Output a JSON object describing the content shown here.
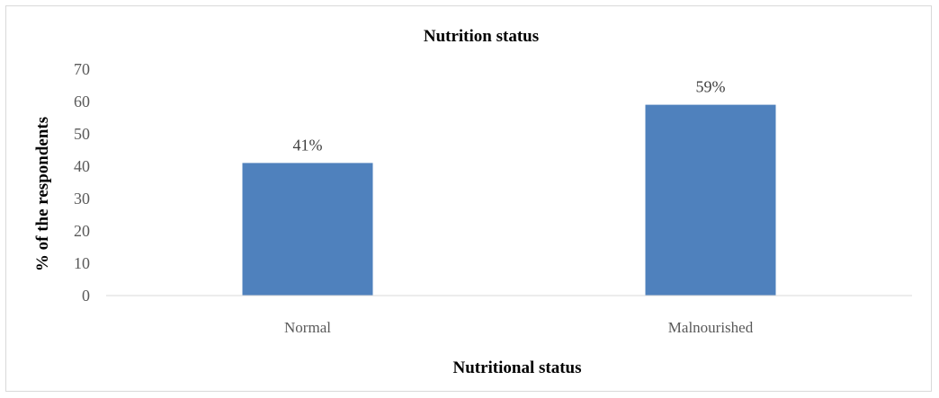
{
  "chart_data": {
    "type": "bar",
    "title": "Nutrition status",
    "xlabel": "Nutritional status",
    "ylabel": "% of the respondents",
    "categories": [
      "Normal",
      "Malnourished"
    ],
    "values": [
      41,
      59
    ],
    "data_labels": [
      "41%",
      "59%"
    ],
    "y_ticks": [
      "0",
      "10",
      "20",
      "30",
      "40",
      "50",
      "60",
      "70"
    ],
    "ylim": [
      0,
      70
    ],
    "grid": false,
    "legend": "none",
    "bar_color": "#4f81bd",
    "axis_color": "#d9d9d9"
  }
}
